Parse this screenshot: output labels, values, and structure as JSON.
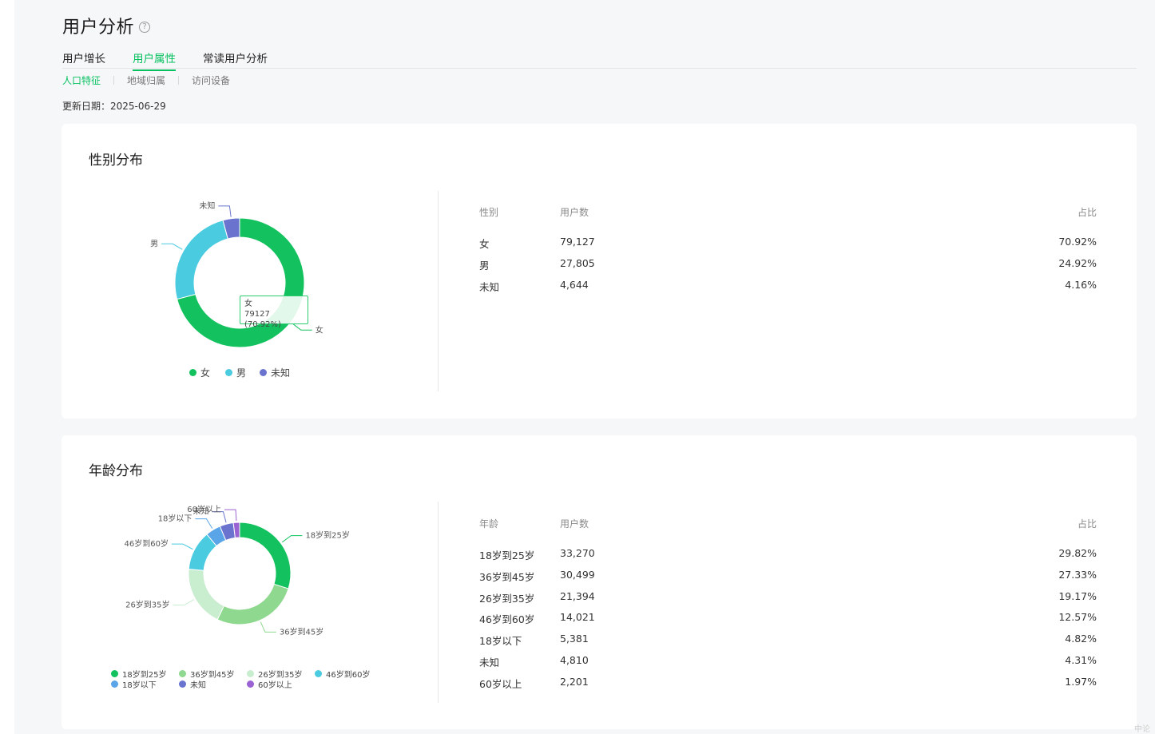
{
  "header": {
    "title": "用户分析",
    "help_icon": "question-circle-icon"
  },
  "tabs": [
    {
      "label": "用户增长",
      "active": false
    },
    {
      "label": "用户属性",
      "active": true
    },
    {
      "label": "常读用户分析",
      "active": false
    }
  ],
  "subtabs": [
    {
      "label": "人口特征",
      "active": true
    },
    {
      "label": "地域归属",
      "active": false
    },
    {
      "label": "访问设备",
      "active": false
    }
  ],
  "update_date": "更新日期：2025-06-29",
  "colors": {
    "accent": "#07c160"
  },
  "gender": {
    "title": "性别分布",
    "tooltip": {
      "name": "女",
      "value": "79127 (70.92%)"
    },
    "table": {
      "headers": [
        "性别",
        "用户数",
        "占比"
      ],
      "rows": [
        {
          "name": "女",
          "count": "79,127",
          "pct": "70.92%"
        },
        {
          "name": "男",
          "count": "27,805",
          "pct": "24.92%"
        },
        {
          "name": "未知",
          "count": "4,644",
          "pct": "4.16%"
        }
      ]
    }
  },
  "age": {
    "title": "年龄分布",
    "table": {
      "headers": [
        "年龄",
        "用户数",
        "占比"
      ],
      "rows": [
        {
          "name": "18岁到25岁",
          "count": "33,270",
          "pct": "29.82%"
        },
        {
          "name": "36岁到45岁",
          "count": "30,499",
          "pct": "27.33%"
        },
        {
          "name": "26岁到35岁",
          "count": "21,394",
          "pct": "19.17%"
        },
        {
          "name": "46岁到60岁",
          "count": "14,021",
          "pct": "12.57%"
        },
        {
          "name": "18岁以下",
          "count": "5,381",
          "pct": "4.82%"
        },
        {
          "name": "未知",
          "count": "4,810",
          "pct": "4.31%"
        },
        {
          "name": "60岁以上",
          "count": "2,201",
          "pct": "1.97%"
        }
      ]
    }
  },
  "chart_data": [
    {
      "type": "pie",
      "title": "性别分布",
      "categories": [
        "女",
        "男",
        "未知"
      ],
      "values": [
        79127,
        27805,
        4644
      ],
      "colors": [
        "#13c25e",
        "#4bcbe0",
        "#6a74cf"
      ],
      "legend": "bottom"
    },
    {
      "type": "pie",
      "title": "年龄分布",
      "categories": [
        "18岁到25岁",
        "36岁到45岁",
        "26岁到35岁",
        "46岁到60岁",
        "18岁以下",
        "未知",
        "60岁以上"
      ],
      "values": [
        33270,
        30499,
        21394,
        14021,
        5381,
        4810,
        2201
      ],
      "colors": [
        "#13c25e",
        "#8fd88f",
        "#c8edcf",
        "#4bcbe0",
        "#5aa4e8",
        "#6a74cf",
        "#9a62d2"
      ],
      "legend": "bottom"
    }
  ],
  "watermark": "中论"
}
